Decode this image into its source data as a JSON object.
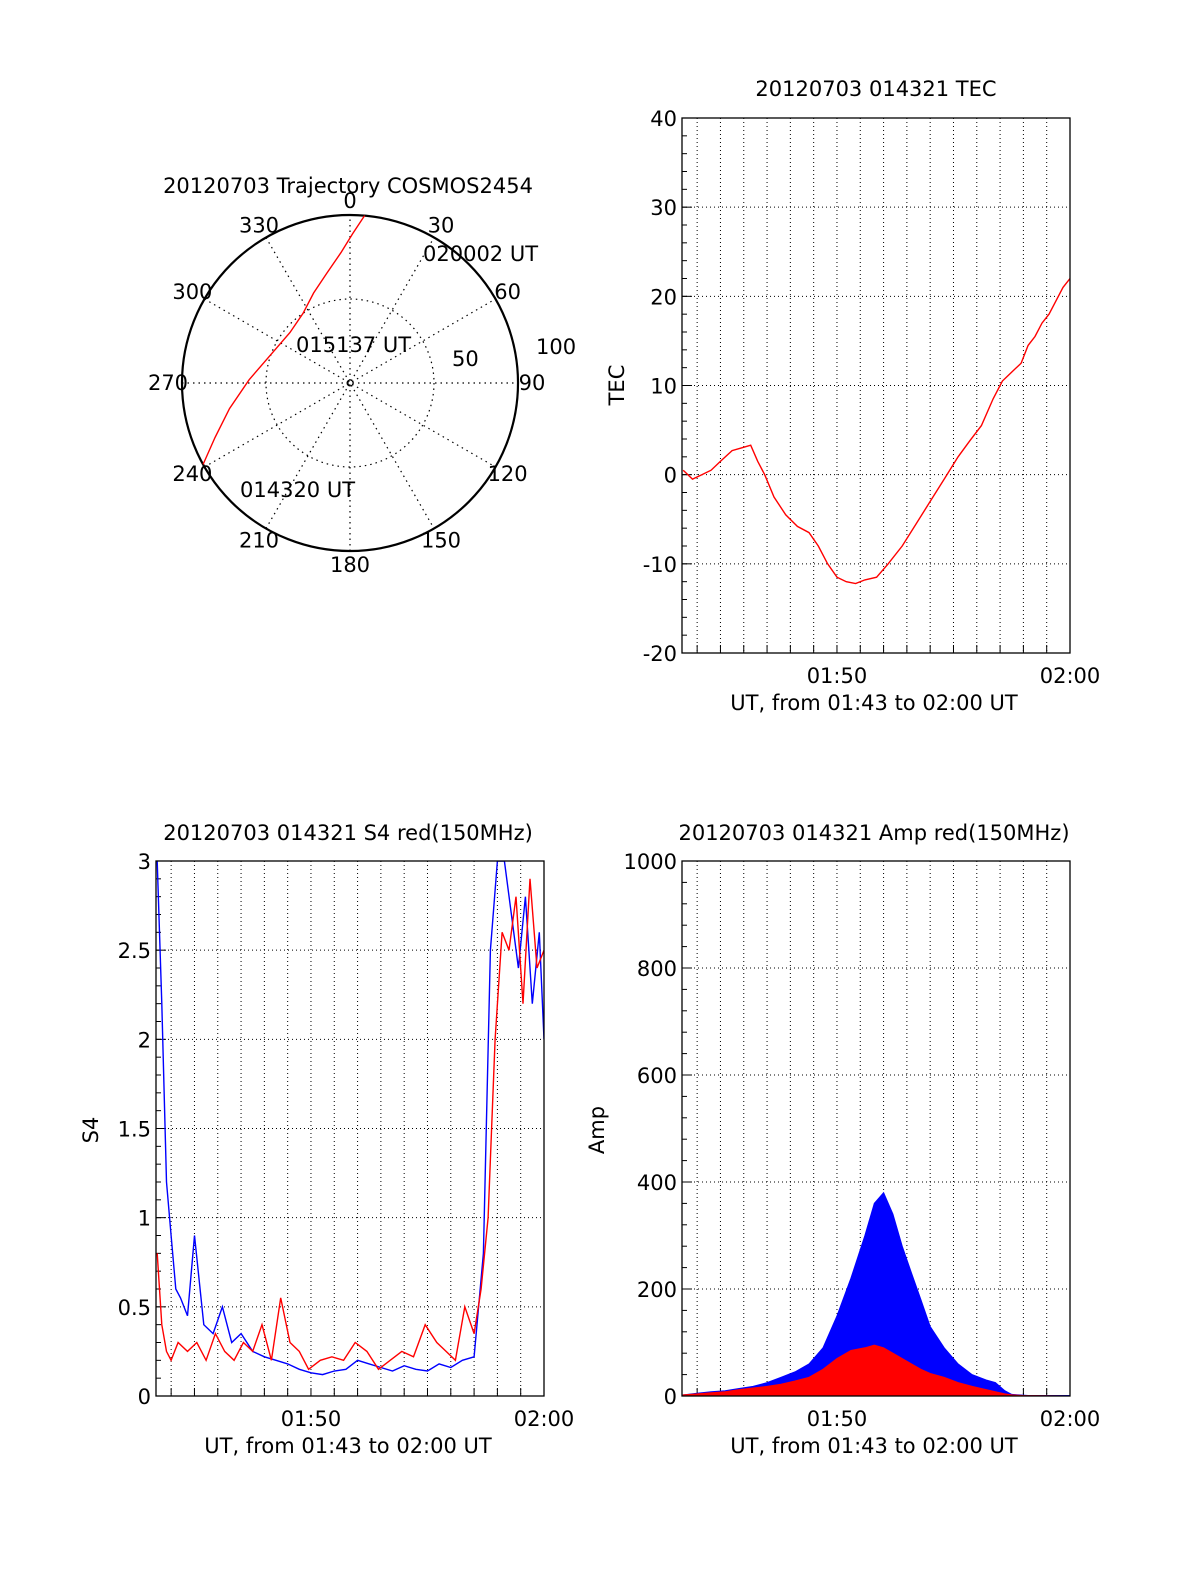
{
  "chart_data": [
    {
      "type": "polar",
      "title": "20120703 Trajectory COSMOS2454",
      "azimuth_labels": [
        "0",
        "30",
        "60",
        "90",
        "120",
        "150",
        "180",
        "210",
        "240",
        "270",
        "300",
        "330"
      ],
      "radial_labels": [
        "50",
        "100"
      ],
      "trajectory": {
        "color": "#ff0000",
        "points": [
          {
            "az": 241,
            "el": 0
          },
          {
            "az": 248,
            "el": 12
          },
          {
            "az": 258,
            "el": 24
          },
          {
            "az": 272,
            "el": 36
          },
          {
            "az": 290,
            "el": 45
          },
          {
            "az": 310,
            "el": 48
          },
          {
            "az": 326,
            "el": 45
          },
          {
            "az": 338,
            "el": 38
          },
          {
            "az": 348,
            "el": 30
          },
          {
            "az": 356,
            "el": 20
          },
          {
            "az": 1,
            "el": 10
          },
          {
            "az": 5,
            "el": 0
          }
        ]
      },
      "annotations": [
        "020002 UT",
        "015137 UT",
        "014320 UT"
      ]
    },
    {
      "type": "line",
      "title": "20120703 014321 TEC",
      "xlabel": "UT, from 01:43 to 02:00 UT",
      "ylabel": "TEC",
      "x_tick_labels": [
        "01:50",
        "02:00"
      ],
      "y_ticks": [
        40,
        30,
        20,
        10,
        0,
        -10,
        -20
      ],
      "xlim_minutes": [
        43.35,
        60.0
      ],
      "ylim": [
        -20,
        40
      ],
      "grid": true,
      "series": [
        {
          "color": "#ff0000",
          "x_minutes": [
            43.4,
            43.8,
            44.2,
            44.6,
            45.0,
            45.5,
            45.9,
            46.3,
            46.6,
            46.9,
            47.3,
            47.8,
            48.3,
            48.8,
            49.2,
            49.6,
            50.0,
            50.4,
            50.8,
            51.2,
            51.7,
            52.2,
            52.8,
            53.4,
            54.0,
            54.6,
            55.2,
            55.7,
            56.2,
            56.7,
            57.1,
            57.5,
            57.9,
            58.2,
            58.5,
            58.8,
            59.1,
            59.4,
            59.7,
            60.0
          ],
          "values": [
            0.5,
            -0.5,
            0.0,
            0.5,
            1.5,
            2.7,
            3.0,
            3.3,
            1.5,
            0.0,
            -2.5,
            -4.5,
            -5.8,
            -6.5,
            -8.0,
            -10.0,
            -11.5,
            -12.0,
            -12.2,
            -11.8,
            -11.5,
            -10.0,
            -8.0,
            -5.5,
            -3.0,
            -0.5,
            2.0,
            3.8,
            5.5,
            8.5,
            10.5,
            11.5,
            12.5,
            14.5,
            15.5,
            17.0,
            18.0,
            19.5,
            21.0,
            22.0
          ]
        }
      ]
    },
    {
      "type": "line",
      "title": "20120703 014321 S4 red(150MHz)",
      "xlabel": "UT, from 01:43 to 02:00 UT",
      "ylabel": "S4",
      "x_tick_labels": [
        "01:50",
        "02:00"
      ],
      "y_ticks": [
        3,
        2.5,
        2,
        1.5,
        1,
        0.5,
        0
      ],
      "xlim_minutes": [
        43.35,
        60.0
      ],
      "ylim": [
        0,
        3
      ],
      "grid": true,
      "series": [
        {
          "color": "#0000ff",
          "x_minutes": [
            43.4,
            43.6,
            43.8,
            44.0,
            44.2,
            44.4,
            44.7,
            45.0,
            45.4,
            45.8,
            46.2,
            46.6,
            47.0,
            47.5,
            48.0,
            48.5,
            49.0,
            49.5,
            50.0,
            50.5,
            51.0,
            51.5,
            52.0,
            52.5,
            53.0,
            53.5,
            54.0,
            54.5,
            55.0,
            55.5,
            56.0,
            56.5,
            57.0,
            57.4,
            57.7,
            58.0,
            58.3,
            58.6,
            58.9,
            59.2,
            59.5,
            59.8,
            60.0
          ],
          "values": [
            3.0,
            2.2,
            1.2,
            0.9,
            0.6,
            0.55,
            0.45,
            0.9,
            0.4,
            0.35,
            0.5,
            0.3,
            0.35,
            0.25,
            0.22,
            0.2,
            0.18,
            0.15,
            0.13,
            0.12,
            0.14,
            0.15,
            0.2,
            0.18,
            0.16,
            0.14,
            0.17,
            0.15,
            0.14,
            0.18,
            0.16,
            0.2,
            0.22,
            0.8,
            2.5,
            3.0,
            3.0,
            2.7,
            2.4,
            2.8,
            2.2,
            2.6,
            2.0
          ]
        },
        {
          "color": "#ff0000",
          "x_minutes": [
            43.4,
            43.6,
            43.8,
            44.0,
            44.3,
            44.7,
            45.1,
            45.5,
            45.9,
            46.3,
            46.7,
            47.1,
            47.5,
            47.9,
            48.3,
            48.7,
            49.1,
            49.5,
            49.9,
            50.4,
            50.9,
            51.4,
            51.9,
            52.4,
            52.9,
            53.4,
            53.9,
            54.4,
            54.9,
            55.4,
            55.8,
            56.2,
            56.6,
            57.0,
            57.3,
            57.6,
            57.9,
            58.2,
            58.5,
            58.8,
            59.1,
            59.4,
            59.7,
            60.0
          ],
          "values": [
            0.8,
            0.4,
            0.25,
            0.2,
            0.3,
            0.25,
            0.3,
            0.2,
            0.35,
            0.25,
            0.2,
            0.3,
            0.25,
            0.4,
            0.2,
            0.55,
            0.3,
            0.25,
            0.15,
            0.2,
            0.22,
            0.2,
            0.3,
            0.25,
            0.15,
            0.2,
            0.25,
            0.22,
            0.4,
            0.3,
            0.25,
            0.2,
            0.5,
            0.35,
            0.6,
            1.0,
            2.0,
            2.6,
            2.5,
            2.8,
            2.2,
            2.9,
            2.4,
            2.5
          ]
        }
      ]
    },
    {
      "type": "area",
      "title": "20120703 014321 Amp red(150MHz)",
      "xlabel": "UT, from 01:43 to 02:00 UT",
      "ylabel": "Amp",
      "x_tick_labels": [
        "01:50",
        "02:00"
      ],
      "y_ticks": [
        1000,
        800,
        600,
        400,
        200,
        0
      ],
      "xlim_minutes": [
        43.35,
        60.0
      ],
      "ylim": [
        0,
        1000
      ],
      "grid": true,
      "series": [
        {
          "color": "#0000ff",
          "x_minutes": [
            43.4,
            44.0,
            44.6,
            45.2,
            45.8,
            46.4,
            47.0,
            47.6,
            48.2,
            48.8,
            49.4,
            50.0,
            50.6,
            51.2,
            51.6,
            52.0,
            52.4,
            52.8,
            53.2,
            53.6,
            54.0,
            54.6,
            55.2,
            55.8,
            56.4,
            56.8,
            57.2,
            57.5,
            57.8,
            58.2,
            58.8,
            59.4,
            60.0
          ],
          "values": [
            2,
            5,
            8,
            10,
            14,
            18,
            25,
            35,
            45,
            60,
            90,
            150,
            220,
            300,
            360,
            380,
            340,
            280,
            230,
            180,
            130,
            90,
            60,
            40,
            30,
            25,
            10,
            3,
            2,
            1,
            1,
            1,
            1
          ]
        },
        {
          "color": "#ff0000",
          "x_minutes": [
            43.4,
            44.0,
            44.6,
            45.2,
            45.8,
            46.4,
            47.0,
            47.6,
            48.2,
            48.8,
            49.4,
            50.0,
            50.6,
            51.2,
            51.6,
            52.0,
            52.4,
            52.8,
            53.2,
            53.6,
            54.0,
            54.6,
            55.2,
            55.8,
            56.4,
            56.8,
            57.2,
            57.5,
            58.0,
            60.0
          ],
          "values": [
            2,
            4,
            6,
            8,
            12,
            15,
            18,
            22,
            28,
            35,
            50,
            70,
            85,
            90,
            95,
            90,
            80,
            70,
            60,
            50,
            42,
            35,
            25,
            18,
            12,
            8,
            4,
            2,
            1,
            0
          ]
        }
      ]
    }
  ]
}
